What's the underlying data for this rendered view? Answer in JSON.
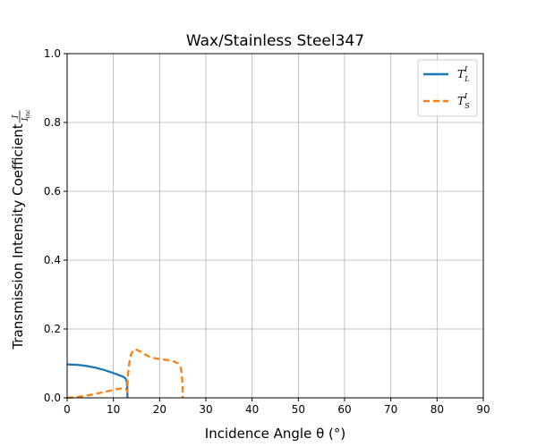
{
  "chart_data": {
    "type": "line",
    "title": "Wax/Stainless Steel347",
    "xlabel": "Incidence Angle θ (°)",
    "ylabel": "Transmission Intensity Coefficient",
    "ylabel_fraction": {
      "numerator": "I",
      "denominator": "I",
      "denominator_subscript": "inc"
    },
    "xlim": [
      0,
      90
    ],
    "ylim": [
      0,
      1.0
    ],
    "xticks": [
      0,
      10,
      20,
      30,
      40,
      50,
      60,
      70,
      80,
      90
    ],
    "yticks": [
      0.0,
      0.2,
      0.4,
      0.6,
      0.8,
      1.0
    ],
    "xtick_labels": [
      "0",
      "10",
      "20",
      "30",
      "40",
      "50",
      "60",
      "70",
      "80",
      "90"
    ],
    "ytick_labels": [
      "0.0",
      "0.2",
      "0.4",
      "0.6",
      "0.8",
      "1.0"
    ],
    "grid": true,
    "legend_position": "top-right",
    "series": [
      {
        "name": "T_L^I",
        "legend_main": "T",
        "legend_sup": "I",
        "legend_sub": "L",
        "color": "#1f77b4",
        "style": "solid",
        "x": [
          0,
          2,
          4,
          6,
          8,
          10,
          11,
          12,
          12.6,
          12.9,
          13.0,
          13.05
        ],
        "y": [
          0.097,
          0.096,
          0.093,
          0.088,
          0.081,
          0.072,
          0.067,
          0.062,
          0.057,
          0.048,
          0.03,
          0.0
        ]
      },
      {
        "name": "T_S^I",
        "legend_main": "T",
        "legend_sup": "I",
        "legend_sub": "S",
        "color": "#ff7f0e",
        "style": "dashed",
        "x": [
          0,
          2,
          4,
          6,
          8,
          10,
          11,
          12,
          12.6,
          12.9,
          13.0,
          13.1,
          13.4,
          13.8,
          14.2,
          14.6,
          15.0,
          16,
          17,
          18,
          19,
          20,
          21,
          22,
          23,
          24,
          24.5,
          24.8,
          24.95,
          25.0
        ],
        "y": [
          0.0,
          0.002,
          0.006,
          0.011,
          0.017,
          0.023,
          0.026,
          0.028,
          0.026,
          0.022,
          0.017,
          0.06,
          0.098,
          0.125,
          0.137,
          0.141,
          0.14,
          0.133,
          0.125,
          0.118,
          0.115,
          0.113,
          0.111,
          0.109,
          0.106,
          0.1,
          0.09,
          0.07,
          0.035,
          0.0
        ]
      }
    ]
  }
}
